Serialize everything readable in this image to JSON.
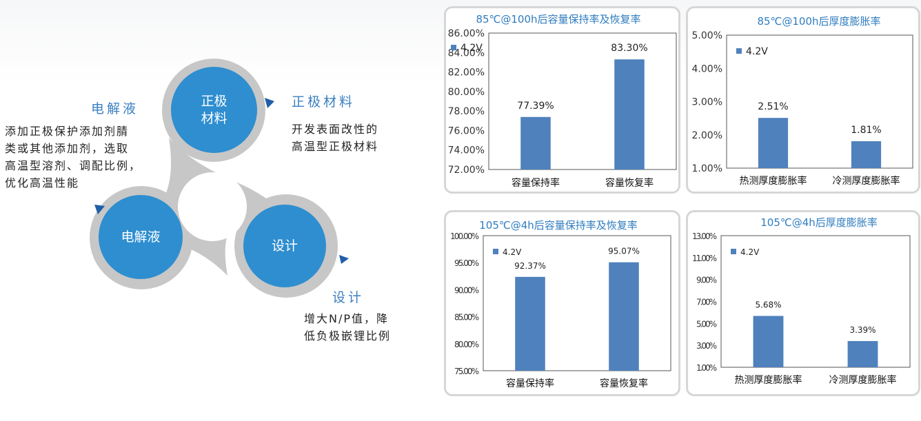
{
  "diagram": {
    "top_node": "正极\n材料",
    "left_node": "电解液",
    "right_node": "设计",
    "electrolyte_title": "电解液",
    "electrolyte_lines": [
      "添加正极保护添加剂腈",
      "类或其他添加剂，选取",
      "高温型溶剂、调配比例，",
      "优化高温性能"
    ],
    "cathode_title": "正极材料",
    "cathode_lines": [
      "开发表面改性的",
      "高温型正极材料"
    ],
    "design_title": "设计",
    "design_lines": [
      "增大N/P值，降",
      "低负极嵌锂比例"
    ],
    "colors": {
      "node": "#2e8ed0",
      "ring": "#c7c7c7",
      "accent": "#3a7fc1",
      "arrow": "#1f5fa8"
    }
  },
  "chart_data": [
    {
      "type": "bar",
      "title": "85℃@100h后容量保持率及恢复率",
      "categories": [
        "容量保持率",
        "容量恢复率"
      ],
      "series": [
        {
          "name": "4.2V",
          "values": [
            77.39,
            83.3
          ]
        }
      ],
      "data_labels": [
        "77.39%",
        "83.30%"
      ],
      "yticks": [
        "72.00%",
        "74.00%",
        "76.00%",
        "78.00%",
        "80.00%",
        "82.00%",
        "84.00%",
        "86.00%"
      ],
      "ylim": [
        72,
        86
      ],
      "legend_position": "top-left",
      "grid": false,
      "color": "#4f81bd"
    },
    {
      "type": "bar",
      "title": "85℃@100h后厚度膨胀率",
      "categories": [
        "热测厚度膨胀率",
        "冷测厚度膨胀率"
      ],
      "series": [
        {
          "name": "4.2V",
          "values": [
            2.51,
            1.81
          ]
        }
      ],
      "data_labels": [
        "2.51%",
        "1.81%"
      ],
      "yticks": [
        "1.00%",
        "2.00%",
        "3.00%",
        "4.00%",
        "5.00%"
      ],
      "ylim": [
        1,
        5
      ],
      "legend_position": "top-left",
      "grid": false,
      "color": "#4f81bd"
    },
    {
      "type": "bar",
      "title": "105℃@4h后容量保持率及恢复率",
      "categories": [
        "容量保持率",
        "容量恢复率"
      ],
      "series": [
        {
          "name": "4.2V",
          "values": [
            92.37,
            95.07
          ]
        }
      ],
      "data_labels": [
        "92.37%",
        "95.07%"
      ],
      "yticks": [
        "75.00%",
        "80.00%",
        "85.00%",
        "90.00%",
        "95.00%",
        "100.00%"
      ],
      "ylim": [
        75,
        100
      ],
      "legend_position": "top-left",
      "grid": false,
      "color": "#4f81bd"
    },
    {
      "type": "bar",
      "title": "105℃@4h后厚度膨胀率",
      "categories": [
        "热测厚度膨胀率",
        "冷测厚度膨胀率"
      ],
      "series": [
        {
          "name": "4.2V",
          "values": [
            5.68,
            3.39
          ]
        }
      ],
      "data_labels": [
        "5.68%",
        "3.39%"
      ],
      "yticks": [
        "1.00%",
        "3.00%",
        "5.00%",
        "7.00%",
        "9.00%",
        "11.00%",
        "13.00%"
      ],
      "ylim": [
        1,
        13
      ],
      "legend_position": "top-left",
      "grid": false,
      "color": "#4f81bd"
    }
  ]
}
